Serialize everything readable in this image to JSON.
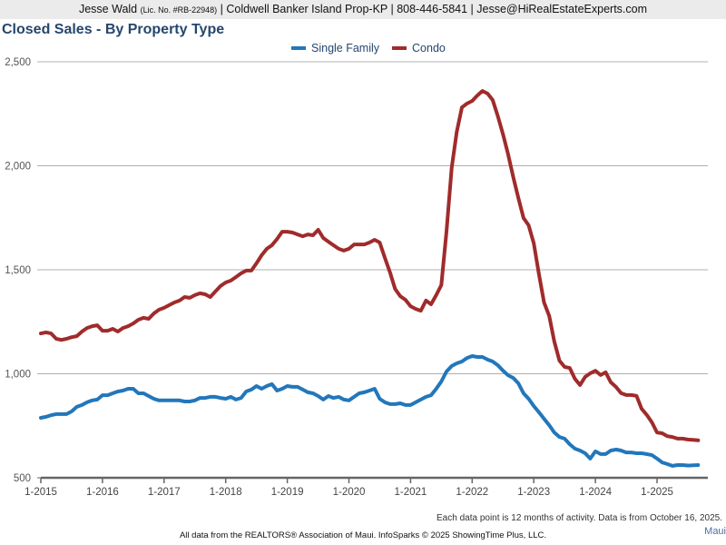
{
  "header": {
    "name": "Jesse Wald",
    "license": "(Lic. No. #RB-22948)",
    "rest": "| Coldwell Banker Island Prop-KP | 808-446-5841 | Jesse@HiRealEstateExperts.com"
  },
  "region_label": "Maui",
  "note": "Each data point is 12 months of activity. Data is from October 16, 2025.",
  "footer": "All data from the REALTORS® Association of Maui. InfoSparks © 2025 ShowingTime Plus, LLC.",
  "chart_data": {
    "type": "line",
    "title": "Closed Sales - By Property Type",
    "xlabel": "",
    "ylabel": "",
    "ylim": [
      500,
      2500
    ],
    "yticks": [
      500,
      1000,
      1500,
      2000,
      2500
    ],
    "ytick_labels": [
      "500",
      "1,000",
      "1,500",
      "2,000",
      "2,500"
    ],
    "xtick_labels": [
      "1-2015",
      "1-2016",
      "1-2017",
      "1-2018",
      "1-2019",
      "1-2020",
      "1-2021",
      "1-2022",
      "1-2023",
      "1-2024",
      "1-2025"
    ],
    "x_start": "2015-01",
    "x_step": "month",
    "grid": true,
    "legend_position": "top-center",
    "series": [
      {
        "name": "Single Family",
        "color": "#2277bb",
        "values": [
          788,
          793,
          801,
          806,
          806,
          806,
          819,
          841,
          850,
          863,
          872,
          876,
          897,
          897,
          906,
          915,
          919,
          928,
          928,
          906,
          906,
          893,
          880,
          872,
          872,
          872,
          872,
          872,
          867,
          867,
          872,
          884,
          884,
          889,
          889,
          884,
          880,
          889,
          876,
          884,
          915,
          924,
          941,
          928,
          941,
          950,
          919,
          928,
          941,
          937,
          937,
          924,
          911,
          906,
          893,
          876,
          893,
          884,
          889,
          876,
          872,
          889,
          906,
          911,
          919,
          928,
          880,
          863,
          854,
          854,
          858,
          850,
          850,
          863,
          876,
          889,
          897,
          928,
          963,
          1011,
          1037,
          1050,
          1059,
          1076,
          1085,
          1081,
          1081,
          1068,
          1059,
          1041,
          1015,
          993,
          980,
          954,
          906,
          880,
          845,
          815,
          784,
          753,
          718,
          696,
          688,
          661,
          640,
          631,
          618,
          592,
          627,
          614,
          614,
          631,
          636,
          631,
          622,
          622,
          618,
          618,
          614,
          609,
          592,
          574,
          566,
          557,
          561,
          561,
          559,
          560,
          561
        ]
      },
      {
        "name": "Condo",
        "color": "#a02b2b",
        "values": [
          1194,
          1199,
          1194,
          1168,
          1163,
          1168,
          1176,
          1181,
          1203,
          1220,
          1229,
          1233,
          1207,
          1207,
          1216,
          1203,
          1220,
          1229,
          1242,
          1260,
          1269,
          1264,
          1290,
          1308,
          1317,
          1330,
          1343,
          1352,
          1369,
          1365,
          1378,
          1387,
          1382,
          1369,
          1396,
          1422,
          1439,
          1448,
          1465,
          1483,
          1496,
          1496,
          1531,
          1570,
          1601,
          1618,
          1648,
          1683,
          1683,
          1679,
          1670,
          1661,
          1670,
          1666,
          1692,
          1653,
          1635,
          1618,
          1601,
          1592,
          1601,
          1622,
          1622,
          1622,
          1631,
          1644,
          1631,
          1557,
          1487,
          1408,
          1373,
          1356,
          1325,
          1312,
          1303,
          1352,
          1334,
          1378,
          1426,
          1683,
          1989,
          2163,
          2281,
          2299,
          2312,
          2338,
          2360,
          2347,
          2316,
          2238,
          2151,
          2055,
          1945,
          1845,
          1749,
          1714,
          1627,
          1478,
          1343,
          1278,
          1155,
          1063,
          1033,
          1028,
          976,
          946,
          985,
          1002,
          1015,
          994,
          1007,
          959,
          937,
          907,
          898,
          898,
          894,
          832,
          802,
          767,
          718,
          714,
          700,
          696,
          688,
          688,
          684,
          682,
          680
        ]
      }
    ]
  }
}
